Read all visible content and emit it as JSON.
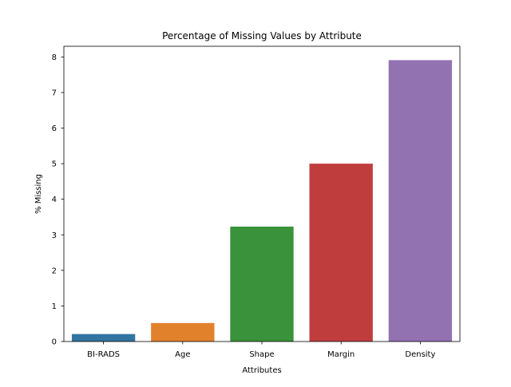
{
  "chart_data": {
    "type": "bar",
    "title": "Percentage of Missing Values by Attribute",
    "xlabel": "Attributes",
    "ylabel": "% Missing",
    "categories": [
      "BI-RADS",
      "Age",
      "Shape",
      "Margin",
      "Density"
    ],
    "values": [
      0.21,
      0.52,
      3.23,
      5.0,
      7.91
    ],
    "colors": [
      "#3274a1",
      "#e1812c",
      "#3a923a",
      "#c03d3e",
      "#9372b2"
    ],
    "ylim": [
      0,
      8.3
    ],
    "yticks": [
      0,
      1,
      2,
      3,
      4,
      5,
      6,
      7,
      8
    ],
    "grid": false,
    "legend": "none"
  }
}
